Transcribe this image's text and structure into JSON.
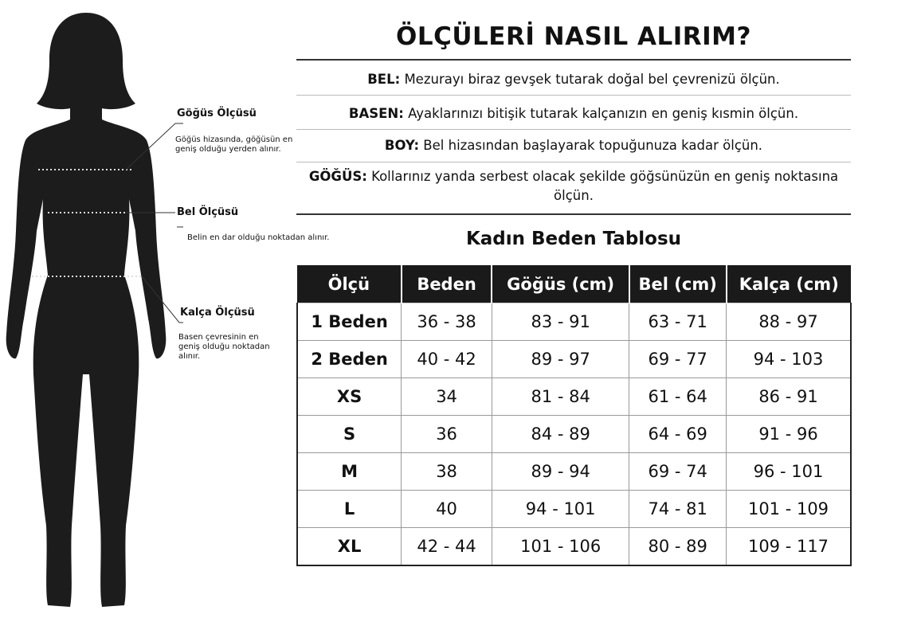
{
  "title": "ÖLÇÜLERİ NASIL ALIRIM?",
  "instructions": [
    {
      "term": "BEL:",
      "text": " Mezurayı biraz gevşek tutarak doğal bel çevrenizü ölçün."
    },
    {
      "term": "BASEN:",
      "text": " Ayaklarınızı bitişik tutarak kalçanızın en geniş kısmin ölçün."
    },
    {
      "term": "BOY:",
      "text": " Bel hizasından başlayarak topuğunuza kadar ölçün."
    },
    {
      "term": "GÖĞÜS:",
      "text": " Kollarınız yanda serbest olacak şekilde göğsünüzün en geniş noktasına ölçün."
    }
  ],
  "figure_labels": [
    {
      "label": "Göğüs Ölçüsü",
      "desc": "Göğüs hizasında, göğüsün en geniş olduğu yerden alınır."
    },
    {
      "label": "Bel Ölçüsü",
      "desc": "Belin en dar olduğu noktadan alınır."
    },
    {
      "label": "Kalça Ölçüsü",
      "desc": "Basen çevresinin en geniş olduğu noktadan alınır."
    }
  ],
  "table": {
    "title": "Kadın Beden Tablosu",
    "headers": [
      "Ölçü",
      "Beden",
      "Göğüs (cm)",
      "Bel (cm)",
      "Kalça (cm)"
    ],
    "rows": [
      [
        "1 Beden",
        "36 - 38",
        "83 - 91",
        "63 - 71",
        "88 - 97"
      ],
      [
        "2 Beden",
        "40 - 42",
        "89 - 97",
        "69 - 77",
        "94 - 103"
      ],
      [
        "XS",
        "34",
        "81 - 84",
        "61 - 64",
        "86 - 91"
      ],
      [
        "S",
        "36",
        "84 - 89",
        "64 - 69",
        "91 - 96"
      ],
      [
        "M",
        "38",
        "89 - 94",
        "69 - 74",
        "96 - 101"
      ],
      [
        "L",
        "40",
        "94 - 101",
        "74 - 81",
        "101 - 109"
      ],
      [
        "XL",
        "42 - 44",
        "101 - 106",
        "80 - 89",
        "109 - 117"
      ]
    ]
  },
  "colors": {
    "header_bg": "#1a1a1a",
    "silhouette": "#1c1c1c"
  }
}
